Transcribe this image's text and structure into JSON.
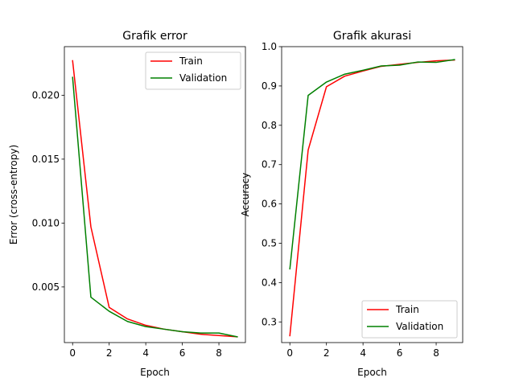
{
  "chart_data": [
    {
      "type": "line",
      "title": "Grafik error",
      "xlabel": "Epoch",
      "ylabel": "Error (cross-entropy)",
      "xlim": [
        -0.45,
        9.45
      ],
      "ylim": [
        0.00065,
        0.0238
      ],
      "xticks": [
        0,
        2,
        4,
        6,
        8
      ],
      "xtick_labels": [
        "0",
        "2",
        "4",
        "6",
        "8"
      ],
      "yticks": [
        0.005,
        0.01,
        0.015,
        0.02
      ],
      "ytick_labels": [
        "0.005",
        "0.010",
        "0.015",
        "0.020"
      ],
      "legend_position": "top-right",
      "x": [
        0,
        1,
        2,
        3,
        4,
        5,
        6,
        7,
        8,
        9
      ],
      "series": [
        {
          "name": "Train",
          "color": "#ff0000",
          "values": [
            0.0227,
            0.0097,
            0.0034,
            0.0025,
            0.002,
            0.0017,
            0.0015,
            0.0013,
            0.0012,
            0.0011
          ]
        },
        {
          "name": "Validation",
          "color": "#008000",
          "values": [
            0.0214,
            0.0042,
            0.0031,
            0.0023,
            0.0019,
            0.0017,
            0.0015,
            0.0014,
            0.0014,
            0.0011
          ]
        }
      ]
    },
    {
      "type": "line",
      "title": "Grafik akurasi",
      "xlabel": "Epoch",
      "ylabel": "Accuracy",
      "xlim": [
        -0.45,
        9.45
      ],
      "ylim": [
        0.2475,
        1.0
      ],
      "xticks": [
        0,
        2,
        4,
        6,
        8
      ],
      "xtick_labels": [
        "0",
        "2",
        "4",
        "6",
        "8"
      ],
      "yticks": [
        0.3,
        0.4,
        0.5,
        0.6,
        0.7,
        0.8,
        0.9,
        1.0
      ],
      "ytick_labels": [
        "0.3",
        "0.4",
        "0.5",
        "0.6",
        "0.7",
        "0.8",
        "0.9",
        "1.0"
      ],
      "legend_position": "bottom-right",
      "x": [
        0,
        1,
        2,
        3,
        4,
        5,
        6,
        7,
        8,
        9
      ],
      "series": [
        {
          "name": "Train",
          "color": "#ff0000",
          "values": [
            0.265,
            0.737,
            0.898,
            0.925,
            0.938,
            0.95,
            0.955,
            0.96,
            0.964,
            0.966
          ]
        },
        {
          "name": "Validation",
          "color": "#008000",
          "values": [
            0.435,
            0.876,
            0.91,
            0.93,
            0.94,
            0.951,
            0.953,
            0.961,
            0.96,
            0.967
          ]
        }
      ]
    }
  ]
}
